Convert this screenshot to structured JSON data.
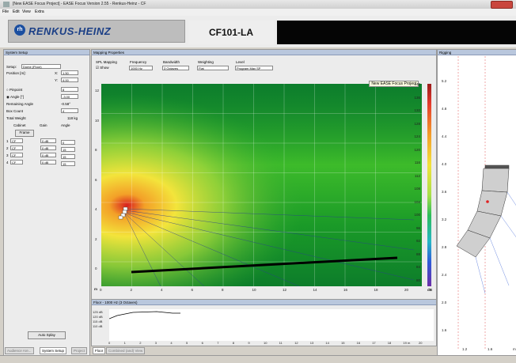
{
  "window": {
    "title": "[New EASE Focus Project] - EASE Focus Version 2.55 - Renkus-Heinz - CF"
  },
  "menu": {
    "file": "File",
    "edit": "Edit",
    "view": "View",
    "extra": "Extra"
  },
  "brand": {
    "logo_mark": "rh",
    "logo_text": "RENKUS-HEINZ",
    "model": "CF101-LA"
  },
  "system_setup": {
    "title": "System Setup",
    "setup_label": "Setup:",
    "setup_value": "Dome (Floor)",
    "position_label": "Position [m]:",
    "x_label": "X:",
    "x_value": "1.50",
    "y_label": "Y:",
    "y_value": "4.00",
    "pinpoint_label": "Pinpoint",
    "pinpoint_value": "8",
    "angle_label": "Angle [°]",
    "angle_value": "-3.00",
    "remaining_label": "Remaining Angle",
    "remaining_value": "-0.58°",
    "boxcount_label": "Box Count",
    "boxcount_value": "4",
    "weight_label": "Total Weight",
    "weight_value": "118 kg",
    "col_cabinet": "Cabinet",
    "col_gain": "Gain",
    "col_angle": "Angle",
    "frame_label": "Frame",
    "rows": [
      {
        "n": "1",
        "cab": "CF",
        "gain": "0 dB",
        "angle": "0"
      },
      {
        "n": "2",
        "cab": "CF",
        "gain": "0 dB",
        "angle": "15"
      },
      {
        "n": "3",
        "cab": "CF",
        "gain": "0 dB",
        "angle": "15"
      },
      {
        "n": "4",
        "cab": "CF",
        "gain": "0 dB",
        "angle": "15"
      }
    ],
    "auto_splay": "Auto Splay"
  },
  "tabs_left": [
    "Audience Are...",
    "System Setup",
    "Project"
  ],
  "mapping": {
    "title": "Mapping Properties",
    "spl_label": "SPL Mapping",
    "show_label": "Show",
    "frequency_label": "Frequency",
    "frequency_value": "1000 Hz",
    "bandwidth_label": "Bandwidth",
    "bandwidth_value": "3 Octaves",
    "weighting_label": "Weighting",
    "weighting_value": "Flat",
    "level_label": "Level",
    "level_value": "Program Max SP",
    "tooltip": "New EASE Focus Project"
  },
  "plot": {
    "y_ticks": [
      "12",
      "10",
      "8",
      "6",
      "4",
      "2",
      "0"
    ],
    "x_ticks": [
      "0",
      "2",
      "4",
      "6",
      "8",
      "10",
      "12",
      "14",
      "16",
      "18",
      "20"
    ],
    "unit": "m",
    "colorbar_ticks": [
      "140",
      "136",
      "132",
      "128",
      "124",
      "120",
      "116",
      "112",
      "108",
      "104",
      "100",
      "96",
      "92",
      "88",
      "84",
      "80"
    ],
    "colorbar_unit": "dB"
  },
  "floor": {
    "title": "Floor - 1000 Hz (3 Octaves)",
    "y_ticks": [
      "125 dB",
      "120 dB",
      "115 dB",
      "110 dB"
    ],
    "x_ticks": [
      "0",
      "1",
      "2",
      "3",
      "4",
      "5",
      "6",
      "7",
      "8",
      "9",
      "10",
      "11",
      "12",
      "13",
      "14",
      "15",
      "16",
      "17",
      "18",
      "19 m",
      "20"
    ]
  },
  "tabs_bottom": [
    "Floor",
    "Combined (and) View"
  ],
  "rigging": {
    "title": "Rigging",
    "y_ticks": [
      "5.2",
      "4.8",
      "4.4",
      "4.0",
      "3.6",
      "3.2",
      "2.8",
      "2.4",
      "2.0",
      "1.6"
    ],
    "x_ticks": [
      "1.2",
      "1.6",
      "m"
    ]
  },
  "colors": {
    "accent": "#1b4fa0",
    "panel_header": "#b9c7dd",
    "tooltip_bg": "#ffffe1"
  }
}
